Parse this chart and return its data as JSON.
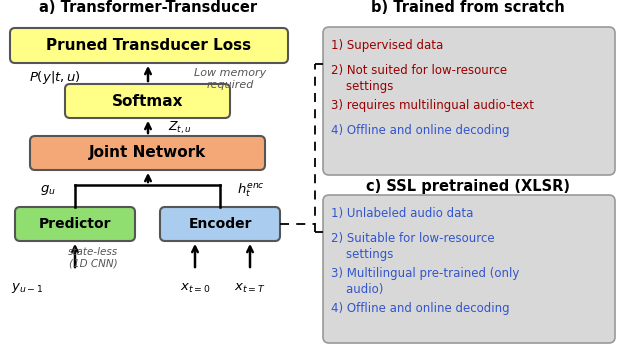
{
  "title_a": "a) Transformer-Transducer",
  "title_b": "b) Trained from scratch",
  "title_c": "c) SSL pretrained (XLSR)",
  "box_pruned_label": "Pruned Transducer Loss",
  "box_softmax_label": "Softmax",
  "box_joint_label": "Joint Network",
  "box_predictor_label": "Predictor",
  "box_encoder_label": "Encoder",
  "color_pruned": "#ffff88",
  "color_softmax": "#ffff88",
  "color_joint": "#f4a878",
  "color_predictor": "#90dd70",
  "color_encoder": "#aaccee",
  "color_box_b": "#d8d8d8",
  "color_box_c": "#d8d8d8",
  "b_lines": [
    [
      "1) Supervised data",
      "#990000"
    ],
    [
      "2) Not suited for low-resource\n    settings",
      "#990000"
    ],
    [
      "3) requires multilingual audio-text",
      "#990000"
    ],
    [
      "4) Offline and online decoding",
      "#3355cc"
    ]
  ],
  "c_lines": [
    [
      "1) Unlabeled audio data",
      "#3355cc"
    ],
    [
      "2) Suitable for low-resource\n    settings",
      "#3355cc"
    ],
    [
      "3) Multilingual pre-trained (only\n    audio)",
      "#3355cc"
    ],
    [
      "4) Offline and online decoding",
      "#3355cc"
    ]
  ]
}
